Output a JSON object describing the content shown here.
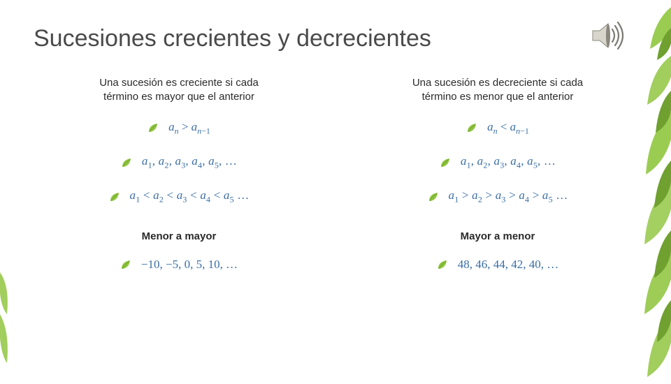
{
  "colors": {
    "title": "#4a4a4a",
    "body_text": "#2a2a2a",
    "formula": "#3b6ea5",
    "accent_green": "#90c63f",
    "accent_green_dark": "#6fa030",
    "speaker_body": "#d8d6cc",
    "speaker_dark": "#8a887e",
    "speaker_wave": "#7a7a72"
  },
  "title": "Sucesiones crecientes y decrecientes",
  "left": {
    "definition": "Una sucesión es creciente si cada término es mayor que el anterior",
    "subtitle": "Menor a mayor"
  },
  "right": {
    "definition": "Una sucesión es decreciente si cada término es menor que el anterior",
    "subtitle": "Mayor a menor"
  },
  "formulas": {
    "left_relation_op": ">",
    "right_relation_op": "<",
    "left_chain_op": "<",
    "right_chain_op": ">",
    "left_example": "−10, −5, 0, 5, 10, …",
    "right_example": "48, 46, 44, 42, 40, …"
  }
}
